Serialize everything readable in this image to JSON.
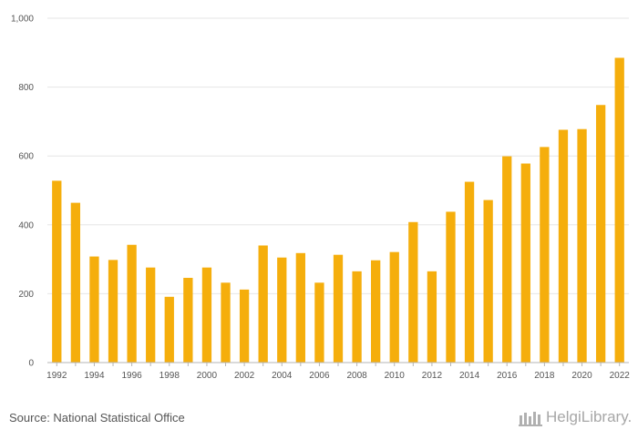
{
  "chart_data": {
    "type": "bar",
    "categories": [
      "1992",
      "1993",
      "1994",
      "1995",
      "1996",
      "1997",
      "1998",
      "1999",
      "2000",
      "2001",
      "2002",
      "2003",
      "2004",
      "2005",
      "2006",
      "2007",
      "2008",
      "2009",
      "2010",
      "2011",
      "2012",
      "2013",
      "2014",
      "2015",
      "2016",
      "2017",
      "2018",
      "2019",
      "2020",
      "2021",
      "2022"
    ],
    "values": [
      528,
      464,
      308,
      298,
      342,
      276,
      191,
      246,
      276,
      232,
      212,
      340,
      305,
      318,
      232,
      313,
      265,
      297,
      321,
      408,
      265,
      438,
      525,
      472,
      599,
      578,
      626,
      676,
      678,
      748,
      885
    ],
    "x_tick_labels": [
      "1992",
      "1994",
      "1996",
      "1998",
      "2000",
      "2002",
      "2004",
      "2006",
      "2008",
      "2010",
      "2012",
      "2014",
      "2016",
      "2018",
      "2020",
      "2022"
    ],
    "y_ticks": [
      0,
      200,
      400,
      600,
      800,
      1000
    ],
    "y_tick_labels": [
      "0",
      "200",
      "400",
      "600",
      "800",
      "1,000"
    ],
    "ylim": [
      0,
      1000
    ],
    "grid": true,
    "bar_color": "#F5AE0C"
  },
  "footer": {
    "source": "Source: National Statistical Office",
    "logo_text": "HelgiLibrary."
  }
}
